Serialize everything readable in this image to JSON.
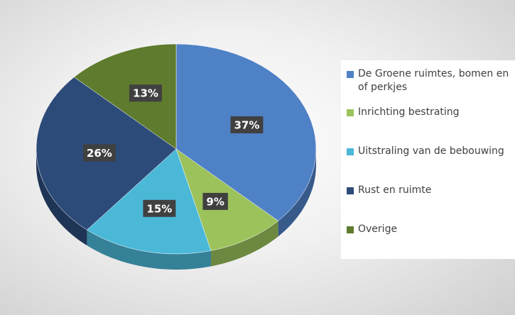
{
  "chart_data": {
    "type": "pie",
    "categories": [
      "De Groene ruimtes, bomen en of perkjes",
      "Inrichting bestrating",
      "Uitstraling van de bebouwing",
      "Rust en ruimte",
      "Overige"
    ],
    "values": [
      37,
      9,
      15,
      26,
      13
    ],
    "value_labels": [
      "37%",
      "9%",
      "15%",
      "26%",
      "13%"
    ],
    "colors": [
      "#4f81c6",
      "#9bc25b",
      "#4bb8d8",
      "#2d4b79",
      "#5e7b2e"
    ],
    "legend": "right"
  }
}
